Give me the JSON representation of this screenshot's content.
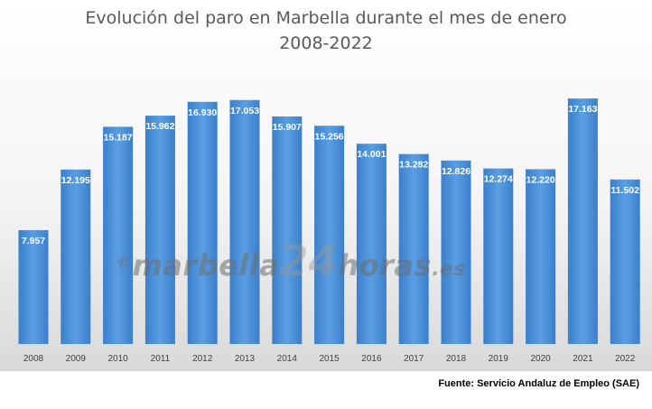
{
  "chart_data": {
    "type": "bar",
    "title": "Evolución del paro en Marbella durante el mes de enero",
    "subtitle": "2008-2022",
    "categories": [
      "2008",
      "2009",
      "2010",
      "2011",
      "2012",
      "2013",
      "2014",
      "2015",
      "2016",
      "2017",
      "2018",
      "2019",
      "2020",
      "2021",
      "2022"
    ],
    "values": [
      7957,
      12195,
      15187,
      15962,
      16930,
      17053,
      15907,
      15256,
      14001,
      13282,
      12826,
      12274,
      12220,
      17163,
      11502
    ],
    "value_labels": [
      "7.957",
      "12.195",
      "15.187",
      "15.962",
      "16.930",
      "17.053",
      "15.907",
      "15.256",
      "14.001",
      "13.282",
      "12.826",
      "12.274",
      "12.220",
      "17.163",
      "11.502"
    ],
    "ylim": [
      0,
      19000
    ],
    "grid": false,
    "bar_color": "#4a90d9"
  },
  "watermark": {
    "copyright": "©",
    "main": "marbella",
    "number": "24",
    "suffix": "horas",
    "tld": ".es"
  },
  "source": "Fuente: Servicio Andaluz de Empleo (SAE)"
}
